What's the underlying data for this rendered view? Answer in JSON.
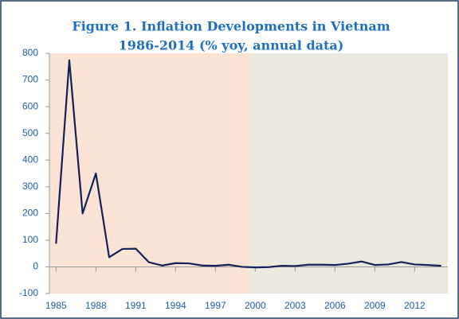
{
  "chart_data": {
    "type": "line",
    "title": "Figure 1. Inflation Developments in Vietnam",
    "subtitle": "1986-2014 (% yoy, annual data)",
    "x": [
      1985,
      1986,
      1987,
      1988,
      1989,
      1990,
      1991,
      1992,
      1993,
      1994,
      1995,
      1996,
      1997,
      1998,
      1999,
      2000,
      2001,
      2002,
      2003,
      2004,
      2005,
      2006,
      2007,
      2008,
      2009,
      2010,
      2011,
      2012,
      2013,
      2014
    ],
    "series": [
      {
        "color": "#14215a",
        "values": [
          87,
          774,
          200,
          350,
          36,
          67,
          68,
          17,
          5,
          14,
          13,
          5,
          4,
          8,
          0,
          -2,
          -1,
          4,
          3,
          8,
          8,
          7,
          12,
          20,
          7,
          9,
          18,
          9,
          7,
          4
        ]
      }
    ],
    "xlim": [
      1984.5,
      2014.5
    ],
    "xticks": [
      1985,
      1988,
      1991,
      1994,
      1997,
      2000,
      2003,
      2006,
      2009,
      2012
    ],
    "ylim": [
      -100,
      800
    ],
    "yticks": [
      -100,
      0,
      100,
      200,
      300,
      400,
      500,
      600,
      700,
      800
    ],
    "regions": [
      {
        "from": 1984.5,
        "to": 1999.6,
        "color": "#fbe4d5"
      },
      {
        "from": 1999.6,
        "to": 2014.5,
        "color": "#ebe8de"
      }
    ]
  }
}
